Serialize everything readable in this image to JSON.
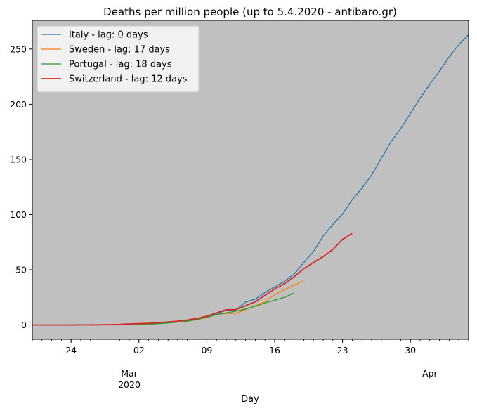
{
  "chart_data": {
    "type": "line",
    "title": "Deaths per million people (up to 5.4.2020 - antibaro.gr)",
    "xlabel": "Day",
    "ylabel": "",
    "x_axis_type": "date",
    "xlim": [
      "2020-02-20",
      "2020-04-05"
    ],
    "ylim": [
      -13,
      276
    ],
    "x_ticks": [
      {
        "date": "2020-02-24",
        "label": "24"
      },
      {
        "date": "2020-03-02",
        "label": "02"
      },
      {
        "date": "2020-03-09",
        "label": "09"
      },
      {
        "date": "2020-03-16",
        "label": "16"
      },
      {
        "date": "2020-03-23",
        "label": "23"
      },
      {
        "date": "2020-03-30",
        "label": "30"
      }
    ],
    "x_month_labels": [
      {
        "date": "2020-03-01",
        "label": "Mar",
        "sublabel": "2020"
      },
      {
        "date": "2020-04-01",
        "label": "Apr",
        "sublabel": ""
      }
    ],
    "y_ticks": [
      0,
      50,
      100,
      150,
      200,
      250
    ],
    "grid": false,
    "plot_background": "#c0c0c0",
    "legend_position": "upper-left",
    "series": [
      {
        "name": "Italy - lag: 0 days",
        "color": "#1f77b4",
        "points": [
          [
            "2020-02-20",
            0
          ],
          [
            "2020-02-21",
            0.02
          ],
          [
            "2020-02-22",
            0.03
          ],
          [
            "2020-02-23",
            0.05
          ],
          [
            "2020-02-24",
            0.1
          ],
          [
            "2020-02-25",
            0.2
          ],
          [
            "2020-02-26",
            0.2
          ],
          [
            "2020-02-27",
            0.3
          ],
          [
            "2020-02-28",
            0.3
          ],
          [
            "2020-02-29",
            0.5
          ],
          [
            "2020-03-01",
            0.6
          ],
          [
            "2020-03-02",
            0.9
          ],
          [
            "2020-03-03",
            1.3
          ],
          [
            "2020-03-04",
            1.8
          ],
          [
            "2020-03-05",
            2.5
          ],
          [
            "2020-03-06",
            3.2
          ],
          [
            "2020-03-07",
            3.9
          ],
          [
            "2020-03-08",
            6
          ],
          [
            "2020-03-09",
            7.6
          ],
          [
            "2020-03-10",
            10.3
          ],
          [
            "2020-03-11",
            13.3
          ],
          [
            "2020-03-12",
            13.5
          ],
          [
            "2020-03-13",
            20.8
          ],
          [
            "2020-03-14",
            23.4
          ],
          [
            "2020-03-15",
            29.5
          ],
          [
            "2020-03-16",
            34.5
          ],
          [
            "2020-03-17",
            39.5
          ],
          [
            "2020-03-18",
            46
          ],
          [
            "2020-03-19",
            56.5
          ],
          [
            "2020-03-20",
            66.5
          ],
          [
            "2020-03-21",
            80.5
          ],
          [
            "2020-03-22",
            91
          ],
          [
            "2020-03-23",
            100.5
          ],
          [
            "2020-03-24",
            113.5
          ],
          [
            "2020-03-25",
            124
          ],
          [
            "2020-03-26",
            136
          ],
          [
            "2020-03-27",
            151
          ],
          [
            "2020-03-28",
            166
          ],
          [
            "2020-03-29",
            178
          ],
          [
            "2020-03-30",
            191.5
          ],
          [
            "2020-03-31",
            205.5
          ],
          [
            "2020-04-01",
            218
          ],
          [
            "2020-04-02",
            230
          ],
          [
            "2020-04-03",
            243
          ],
          [
            "2020-04-04",
            254
          ],
          [
            "2020-04-05",
            263
          ]
        ]
      },
      {
        "name": "Sweden - lag: 17 days",
        "color": "#ff7f0e",
        "points": [
          [
            "2020-02-20",
            0
          ],
          [
            "2020-02-24",
            0
          ],
          [
            "2020-02-28",
            0.1
          ],
          [
            "2020-03-01",
            0.2
          ],
          [
            "2020-03-03",
            0.8
          ],
          [
            "2020-03-05",
            2
          ],
          [
            "2020-03-07",
            3.5
          ],
          [
            "2020-03-08",
            5
          ],
          [
            "2020-03-09",
            6.5
          ],
          [
            "2020-03-10",
            9.5
          ],
          [
            "2020-03-11",
            10.5
          ],
          [
            "2020-03-12",
            10.5
          ],
          [
            "2020-03-13",
            14
          ],
          [
            "2020-03-14",
            17.5
          ],
          [
            "2020-03-15",
            21
          ],
          [
            "2020-03-16",
            27.5
          ],
          [
            "2020-03-17",
            32
          ],
          [
            "2020-03-18",
            36
          ],
          [
            "2020-03-19",
            40
          ]
        ]
      },
      {
        "name": "Portugal - lag: 18 days",
        "color": "#2ca02c",
        "points": [
          [
            "2020-02-20",
            0
          ],
          [
            "2020-02-24",
            0
          ],
          [
            "2020-02-28",
            0.1
          ],
          [
            "2020-03-01",
            0.2
          ],
          [
            "2020-03-03",
            0.6
          ],
          [
            "2020-03-05",
            1.8
          ],
          [
            "2020-03-07",
            3.5
          ],
          [
            "2020-03-08",
            5
          ],
          [
            "2020-03-09",
            7
          ],
          [
            "2020-03-10",
            9.5
          ],
          [
            "2020-03-11",
            11
          ],
          [
            "2020-03-12",
            12.5
          ],
          [
            "2020-03-13",
            14.5
          ],
          [
            "2020-03-14",
            17
          ],
          [
            "2020-03-15",
            20
          ],
          [
            "2020-03-16",
            22.5
          ],
          [
            "2020-03-17",
            25
          ],
          [
            "2020-03-18",
            29
          ]
        ]
      },
      {
        "name": "Switzerland - lag: 12 days",
        "color": "#d62728",
        "points": [
          [
            "2020-02-20",
            0
          ],
          [
            "2020-02-24",
            0
          ],
          [
            "2020-02-27",
            0.2
          ],
          [
            "2020-02-29",
            0.5
          ],
          [
            "2020-03-01",
            1
          ],
          [
            "2020-03-03",
            1.6
          ],
          [
            "2020-03-04",
            2
          ],
          [
            "2020-03-05",
            2.7
          ],
          [
            "2020-03-06",
            3.5
          ],
          [
            "2020-03-07",
            4.5
          ],
          [
            "2020-03-08",
            6
          ],
          [
            "2020-03-09",
            8
          ],
          [
            "2020-03-10",
            11
          ],
          [
            "2020-03-11",
            13.8
          ],
          [
            "2020-03-12",
            14
          ],
          [
            "2020-03-13",
            17.5
          ],
          [
            "2020-03-14",
            21
          ],
          [
            "2020-03-15",
            27
          ],
          [
            "2020-03-16",
            32.5
          ],
          [
            "2020-03-17",
            37.5
          ],
          [
            "2020-03-18",
            43.5
          ],
          [
            "2020-03-19",
            51
          ],
          [
            "2020-03-20",
            56.5
          ],
          [
            "2020-03-21",
            62
          ],
          [
            "2020-03-22",
            68.5
          ],
          [
            "2020-03-23",
            77.5
          ],
          [
            "2020-03-24",
            83
          ]
        ]
      }
    ]
  }
}
